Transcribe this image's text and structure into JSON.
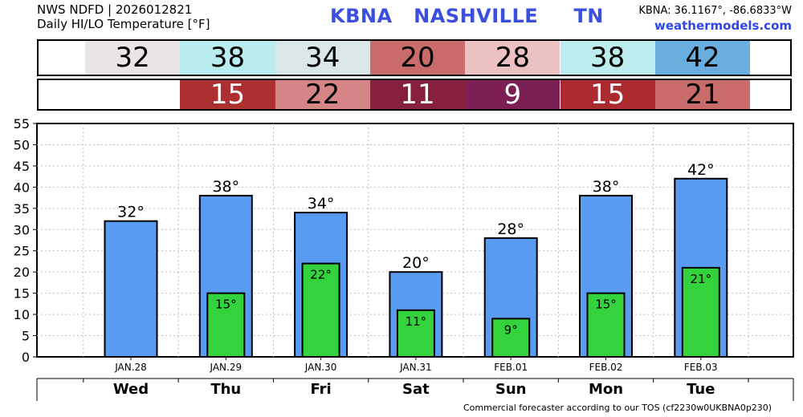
{
  "header": {
    "line1": "NWS NDFD | 2026012821",
    "line2": "Daily HI/LO Temperature [°F]",
    "station_id": "KBNA",
    "city": "NASHVILLE",
    "state": "TN",
    "coords": "KBNA: 36.1167°, -86.6833°W",
    "site": "weathermodels.com"
  },
  "hi_strip": [
    {
      "value": "32",
      "bg": "#ebe4e4",
      "fg": "#000000"
    },
    {
      "value": "38",
      "bg": "#b9ecee",
      "fg": "#000000"
    },
    {
      "value": "34",
      "bg": "#dbe6e6",
      "fg": "#000000"
    },
    {
      "value": "20",
      "bg": "#c96b6b",
      "fg": "#000000"
    },
    {
      "value": "28",
      "bg": "#ecc1c1",
      "fg": "#000000"
    },
    {
      "value": "38",
      "bg": "#bdecee",
      "fg": "#000000"
    },
    {
      "value": "42",
      "bg": "#6aaee0",
      "fg": "#000000"
    }
  ],
  "lo_strip": [
    {
      "value": "15",
      "bg": "#ad3030",
      "fg": "#ffffff"
    },
    {
      "value": "22",
      "bg": "#d58585",
      "fg": "#000000"
    },
    {
      "value": "11",
      "bg": "#86203e",
      "fg": "#ffffff"
    },
    {
      "value": "9",
      "bg": "#7b1f55",
      "fg": "#ffffff"
    },
    {
      "value": "15",
      "bg": "#ab2a30",
      "fg": "#ffffff"
    },
    {
      "value": "21",
      "bg": "#c96b6b",
      "fg": "#000000"
    }
  ],
  "chart_data": {
    "type": "bar",
    "categories": [
      "JAN.28",
      "JAN.29",
      "JAN.30",
      "JAN.31",
      "FEB.01",
      "FEB.02",
      "FEB.03"
    ],
    "weekdays": [
      "Wed",
      "Thu",
      "Fri",
      "Sat",
      "Sun",
      "Mon",
      "Tue"
    ],
    "series": [
      {
        "values": [
          32,
          38,
          34,
          20,
          28,
          38,
          42
        ],
        "labels": [
          "32°",
          "38°",
          "34°",
          "20°",
          "28°",
          "38°",
          "42°"
        ],
        "color": "#589bf0"
      },
      {
        "values": [
          null,
          15,
          22,
          11,
          9,
          15,
          21
        ],
        "labels": [
          "",
          "15°",
          "22°",
          "11°",
          "9°",
          "15°",
          "21°"
        ],
        "color": "#34d23d"
      }
    ],
    "ylim": [
      0,
      55
    ],
    "yticks": [
      "0",
      "5",
      "10",
      "15",
      "20",
      "25",
      "30",
      "35",
      "40",
      "45",
      "50",
      "55"
    ],
    "grid": true
  },
  "footer": "Commercial forecaster according to our TOS (cf2230w0UKBNA0p230)"
}
